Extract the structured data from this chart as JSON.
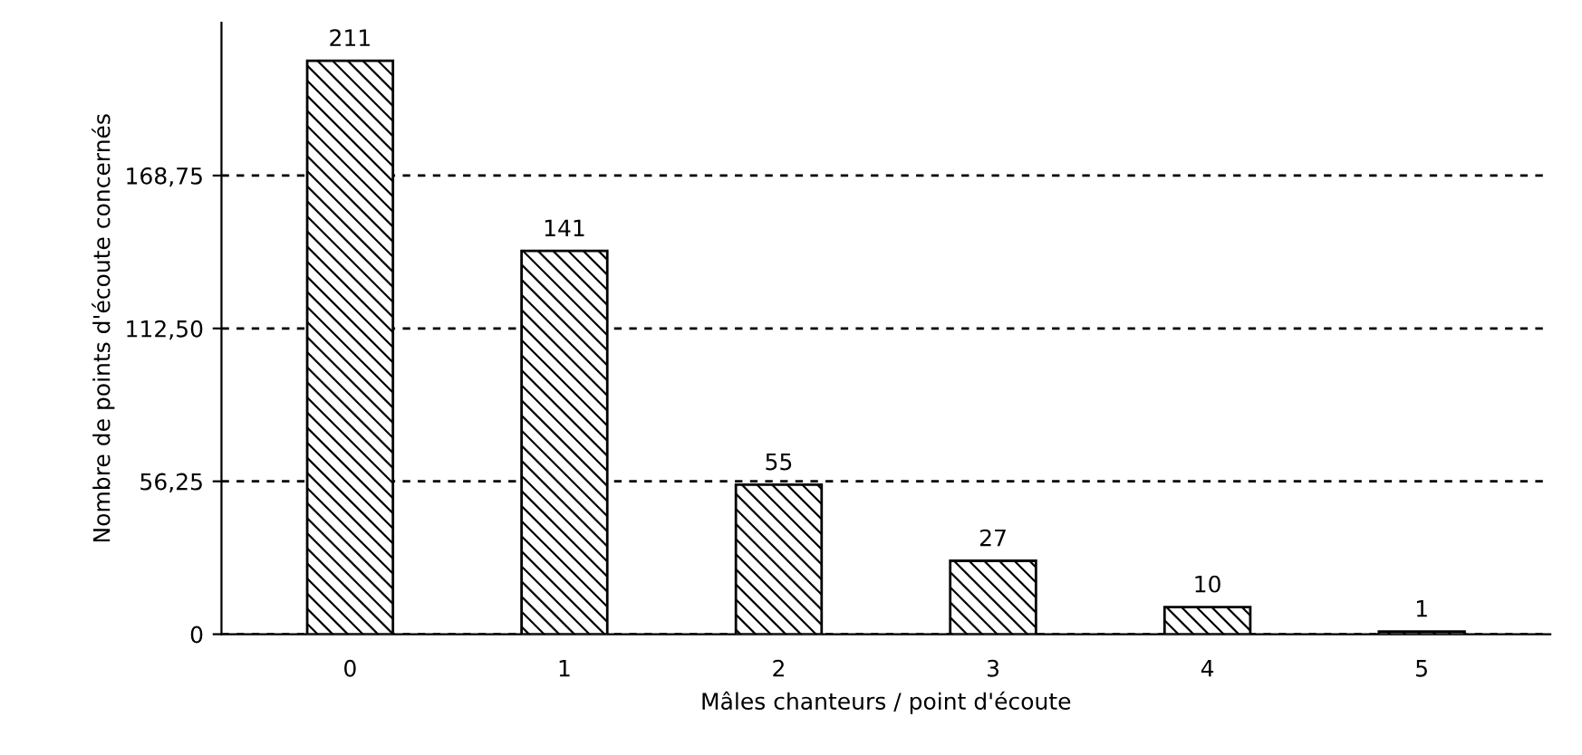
{
  "chart_data": {
    "type": "bar",
    "xlabel": "Mâles chanteurs / point d'écoute",
    "ylabel": "Nombre de points d'écoute concernés",
    "categories": [
      "0",
      "1",
      "2",
      "3",
      "4",
      "5"
    ],
    "values": [
      211,
      141,
      55,
      27,
      10,
      1
    ],
    "color": "#000000",
    "ylim": [
      0,
      225
    ],
    "yticks": [
      0,
      {
        "value": 56.25,
        "label": "56,25"
      },
      {
        "value": 112.5,
        "label": "112,50"
      },
      {
        "value": 168.75,
        "label": "168,75"
      }
    ],
    "grid": "y",
    "line_style": "dashed",
    "data_labels": true,
    "legend": false
  }
}
